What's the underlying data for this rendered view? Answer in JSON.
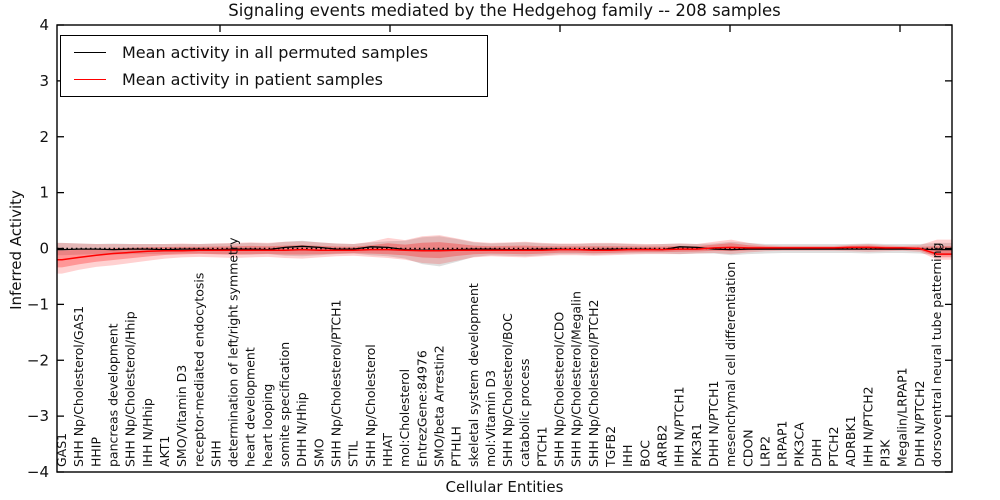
{
  "title": "Signaling events mediated by the Hedgehog family -- 208 samples",
  "legend": {
    "entries": [
      {
        "label": "Mean activity in all permuted samples",
        "color": "#000000"
      },
      {
        "label": "Mean activity in patient samples",
        "color": "#ff0000"
      }
    ]
  },
  "chart_data": {
    "type": "line",
    "title": "Signaling events mediated by the Hedgehog family -- 208 samples",
    "xlabel": "Cellular Entities",
    "ylabel": "Inferred Activity",
    "ylim": [
      -4,
      4
    ],
    "yticks": [
      4,
      3,
      2,
      1,
      0,
      -1,
      -2,
      -3,
      -4
    ],
    "grid": false,
    "legend_position": "upper left",
    "zero_line": true,
    "categories": [
      "GAS1",
      "SHH Np/Cholesterol/GAS1",
      "HHIP",
      "pancreas development",
      "SHH Np/Cholesterol/Hhip",
      "IHH N/Hhip",
      "AKT1",
      "SMO/Vitamin D3",
      "receptor-mediated endocytosis",
      "SHH",
      "determination of left/right symmetry",
      "heart development",
      "heart looping",
      "somite specification",
      "DHH N/Hhip",
      "SMO",
      "SHH Np/Cholesterol/PTCH1",
      "STIL",
      "SHH Np/Cholesterol",
      "HHAT",
      "mol:Cholesterol",
      "EntrezGene:84976",
      "SMO/beta Arrestin2",
      "PTHLH",
      "skeletal system development",
      "mol:Vitamin D3",
      "SHH Np/Cholesterol/BOC",
      "catabolic process",
      "PTCH1",
      "SHH Np/Cholesterol/CDO",
      "SHH Np/Cholesterol/Megalin",
      "SHH Np/Cholesterol/PTCH2",
      "TGFB2",
      "IHH",
      "BOC",
      "ARRB2",
      "IHH N/PTCH1",
      "PIK3R1",
      "DHH N/PTCH1",
      "mesenchymal cell differentiation",
      "CDON",
      "LRP2",
      "LRPAP1",
      "PIK3CA",
      "DHH",
      "PTCH2",
      "ADRBK1",
      "IHH N/PTCH2",
      "PI3K",
      "Megalin/LRPAP1",
      "DHH N/PTCH2",
      "dorsoventral neural tube patterning"
    ],
    "series": [
      {
        "name": "Mean activity in all permuted samples",
        "color": "#000000",
        "values": [
          -0.02,
          -0.01,
          -0.01,
          -0.02,
          -0.01,
          -0.01,
          -0.02,
          -0.01,
          -0.01,
          -0.02,
          -0.01,
          -0.01,
          -0.02,
          0.02,
          0.04,
          0.02,
          -0.01,
          -0.01,
          0.03,
          0.02,
          -0.02,
          -0.03,
          -0.03,
          -0.02,
          -0.01,
          -0.01,
          -0.02,
          -0.02,
          -0.01,
          -0.01,
          -0.02,
          -0.02,
          -0.01,
          -0.01,
          -0.01,
          -0.02,
          0.03,
          0.02,
          -0.01,
          -0.02,
          -0.01,
          -0.01,
          -0.01,
          -0.01,
          -0.01,
          -0.01,
          -0.01,
          -0.01,
          -0.01,
          -0.01,
          -0.01,
          -0.02
        ]
      },
      {
        "name": "Mean activity in patient samples",
        "color": "#ff0000",
        "values": [
          -0.2,
          -0.16,
          -0.12,
          -0.09,
          -0.07,
          -0.05,
          -0.04,
          -0.04,
          -0.03,
          -0.03,
          -0.03,
          -0.03,
          -0.03,
          -0.03,
          -0.02,
          -0.03,
          -0.03,
          -0.03,
          -0.02,
          -0.02,
          -0.03,
          -0.04,
          -0.04,
          -0.03,
          -0.03,
          -0.03,
          -0.03,
          -0.03,
          -0.03,
          -0.02,
          -0.02,
          -0.03,
          -0.03,
          -0.02,
          -0.02,
          -0.02,
          -0.01,
          -0.01,
          0.01,
          0.02,
          0.01,
          0.01,
          0.01,
          0.01,
          0.01,
          0.01,
          0.02,
          0.02,
          0.01,
          0.01,
          0.0,
          -0.1
        ]
      }
    ],
    "bands": [
      {
        "name": "permuted-sample-range",
        "color": "rgba(0,0,0,0.13)",
        "hi": [
          0.1,
          0.09,
          0.08,
          0.09,
          0.08,
          0.08,
          0.08,
          0.08,
          0.08,
          0.09,
          0.09,
          0.1,
          0.09,
          0.12,
          0.14,
          0.11,
          0.09,
          0.08,
          0.11,
          0.13,
          0.14,
          0.2,
          0.22,
          0.17,
          0.11,
          0.09,
          0.1,
          0.11,
          0.09,
          0.08,
          0.08,
          0.09,
          0.09,
          0.08,
          0.07,
          0.08,
          0.09,
          0.08,
          0.09,
          0.12,
          0.1,
          0.08,
          0.08,
          0.08,
          0.08,
          0.08,
          0.08,
          0.09,
          0.08,
          0.08,
          0.08,
          0.1
        ],
        "lo": [
          -0.12,
          -0.11,
          -0.1,
          -0.11,
          -0.1,
          -0.1,
          -0.1,
          -0.09,
          -0.09,
          -0.1,
          -0.11,
          -0.11,
          -0.1,
          -0.13,
          -0.14,
          -0.12,
          -0.1,
          -0.09,
          -0.12,
          -0.14,
          -0.18,
          -0.28,
          -0.32,
          -0.24,
          -0.15,
          -0.12,
          -0.13,
          -0.14,
          -0.12,
          -0.1,
          -0.1,
          -0.11,
          -0.1,
          -0.09,
          -0.09,
          -0.09,
          -0.1,
          -0.09,
          -0.09,
          -0.12,
          -0.1,
          -0.09,
          -0.08,
          -0.08,
          -0.08,
          -0.08,
          -0.08,
          -0.09,
          -0.08,
          -0.08,
          -0.09,
          -0.12
        ]
      },
      {
        "name": "patient-sample-range",
        "color": "rgba(255,0,0,0.18)",
        "hi": [
          0.1,
          0.09,
          0.08,
          0.08,
          0.08,
          0.08,
          0.08,
          0.09,
          0.08,
          0.09,
          0.1,
          0.11,
          0.1,
          0.12,
          0.13,
          0.11,
          0.09,
          0.08,
          0.12,
          0.19,
          0.15,
          0.22,
          0.24,
          0.18,
          0.12,
          0.1,
          0.11,
          0.12,
          0.1,
          0.09,
          0.09,
          0.1,
          0.1,
          0.09,
          0.08,
          0.08,
          0.09,
          0.08,
          0.12,
          0.16,
          0.1,
          0.06,
          0.05,
          0.05,
          0.05,
          0.05,
          0.07,
          0.08,
          0.06,
          0.05,
          0.06,
          0.16
        ],
        "lo": [
          -0.45,
          -0.38,
          -0.33,
          -0.3,
          -0.26,
          -0.22,
          -0.18,
          -0.16,
          -0.15,
          -0.16,
          -0.17,
          -0.16,
          -0.15,
          -0.17,
          -0.18,
          -0.16,
          -0.14,
          -0.13,
          -0.15,
          -0.17,
          -0.2,
          -0.26,
          -0.28,
          -0.22,
          -0.16,
          -0.14,
          -0.15,
          -0.16,
          -0.14,
          -0.12,
          -0.12,
          -0.13,
          -0.12,
          -0.11,
          -0.1,
          -0.1,
          -0.1,
          -0.09,
          -0.08,
          -0.1,
          -0.07,
          -0.05,
          -0.04,
          -0.04,
          -0.04,
          -0.04,
          -0.05,
          -0.06,
          -0.05,
          -0.04,
          -0.06,
          -0.2
        ]
      }
    ]
  }
}
